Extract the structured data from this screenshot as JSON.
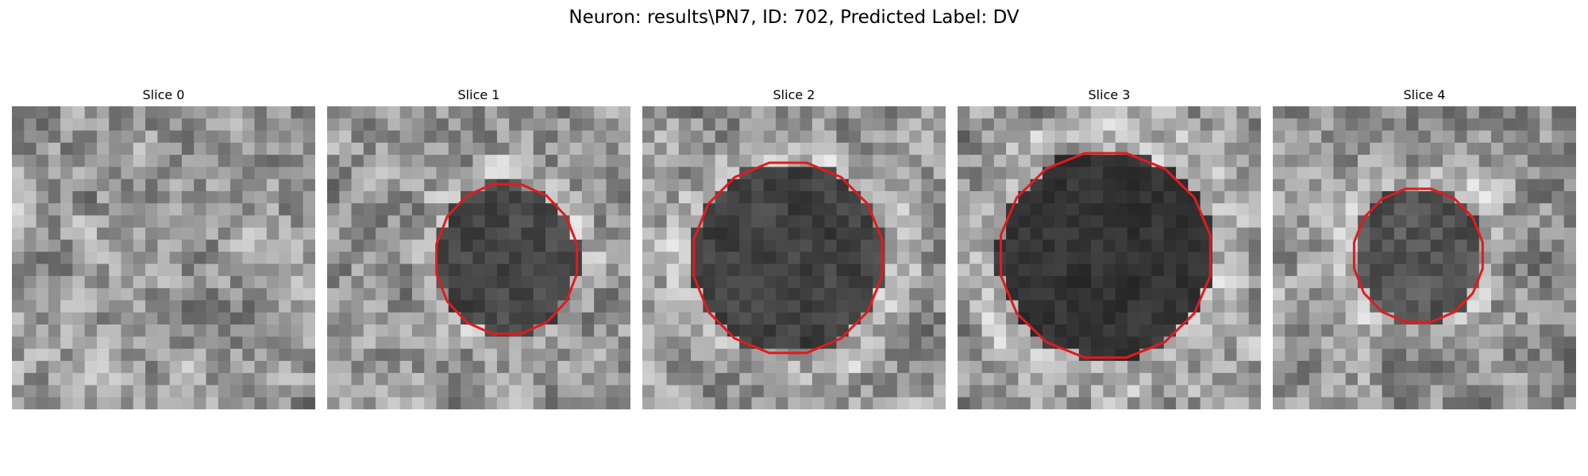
{
  "figure": {
    "title": "Neuron: results\\PN7, ID: 702, Predicted Label: DV"
  },
  "panels": [
    {
      "title": "Slice 0",
      "contour": null,
      "seed": 11,
      "cell_darkness": 0.0
    },
    {
      "title": "Slice 1",
      "contour": {
        "cx": 14.8,
        "cy": 12.6,
        "rx": 5.9,
        "ry": 6.3
      },
      "seed": 23,
      "cell_darkness": 0.45
    },
    {
      "title": "Slice 2",
      "contour": {
        "cx": 12.0,
        "cy": 12.5,
        "rx": 7.9,
        "ry": 8.0
      },
      "seed": 37,
      "cell_darkness": 0.5
    },
    {
      "title": "Slice 3",
      "contour": {
        "cx": 12.2,
        "cy": 12.3,
        "rx": 8.8,
        "ry": 8.6
      },
      "seed": 41,
      "cell_darkness": 0.62
    },
    {
      "title": "Slice 4",
      "contour": {
        "cx": 12.0,
        "cy": 12.3,
        "rx": 5.4,
        "ry": 5.6
      },
      "seed": 53,
      "cell_darkness": 0.35
    }
  ],
  "colors": {
    "contour": "#e31a1c",
    "background": "#ffffff"
  },
  "grid_size": 25
}
